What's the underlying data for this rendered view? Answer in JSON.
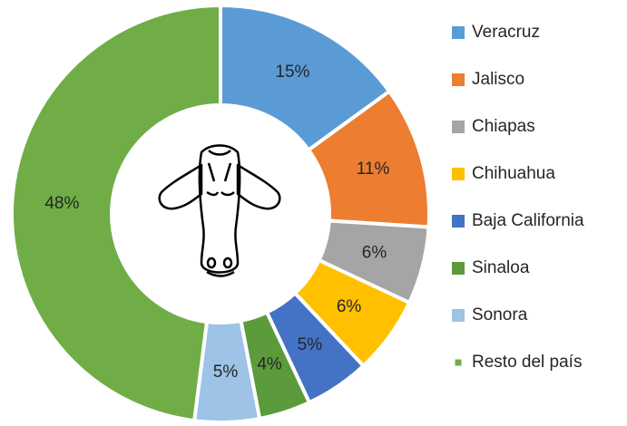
{
  "chart_data": {
    "type": "donut",
    "categories": [
      "Veracruz",
      "Jalisco",
      "Chiapas",
      "Chihuahua",
      "Baja California",
      "Sinaloa",
      "Sonora",
      "Resto del país"
    ],
    "values": [
      15,
      11,
      6,
      6,
      5,
      4,
      5,
      48
    ],
    "value_labels": [
      "15%",
      "11%",
      "6%",
      "6%",
      "5%",
      "4%",
      "5%",
      "48%"
    ],
    "colors": [
      "#5b9bd5",
      "#ed7d31",
      "#a5a5a5",
      "#ffc000",
      "#4472c4",
      "#5b9b3c",
      "#9dc3e6",
      "#70ad47"
    ],
    "legend": "right"
  }
}
